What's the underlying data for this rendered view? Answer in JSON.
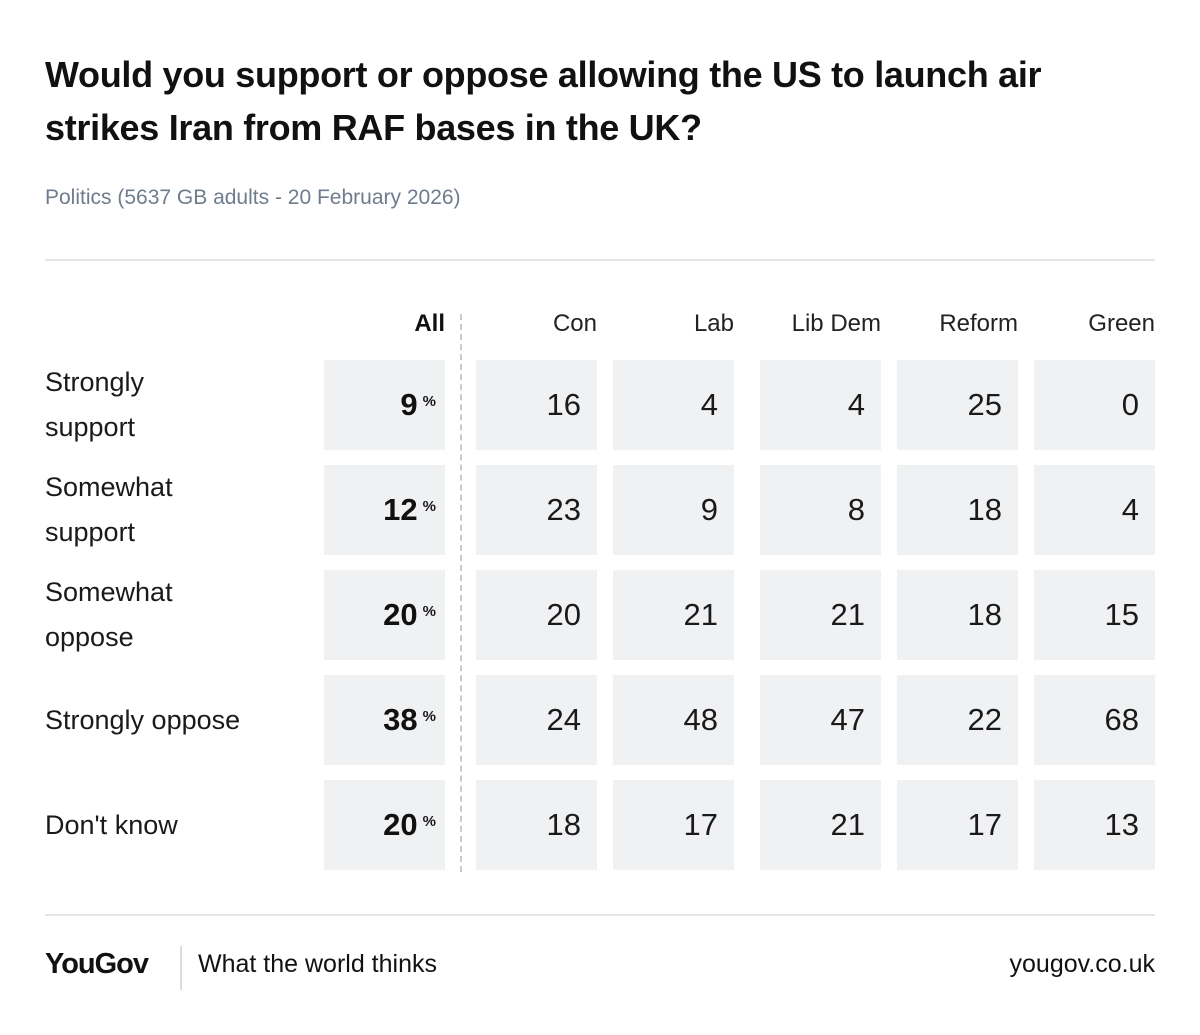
{
  "header": {
    "title": "Would you support or oppose allowing the US to launch air strikes Iran from RAF bases in the UK?",
    "subtitle": "Politics (5637 GB adults - 20 February 2026)"
  },
  "chart_data": {
    "type": "table",
    "title": "Would you support or oppose allowing the US to launch air strikes Iran from RAF bases in the UK?",
    "columns": [
      "All",
      "Con",
      "Lab",
      "Lib Dem",
      "Reform",
      "Green"
    ],
    "rows": [
      {
        "label": "Strongly support",
        "all": 9,
        "values": [
          16,
          4,
          4,
          25,
          0
        ]
      },
      {
        "label": "Somewhat support",
        "all": 12,
        "values": [
          23,
          9,
          8,
          18,
          4
        ]
      },
      {
        "label": "Somewhat oppose",
        "all": 20,
        "values": [
          20,
          21,
          21,
          18,
          15
        ]
      },
      {
        "label": "Strongly oppose",
        "all": 38,
        "values": [
          24,
          48,
          47,
          22,
          68
        ]
      },
      {
        "label": "Don't know",
        "all": 20,
        "values": [
          18,
          17,
          21,
          17,
          13
        ]
      }
    ],
    "unit": "%"
  },
  "footer": {
    "logo": "YouGov",
    "tagline": "What the world thinks",
    "site": "yougov.co.uk"
  }
}
